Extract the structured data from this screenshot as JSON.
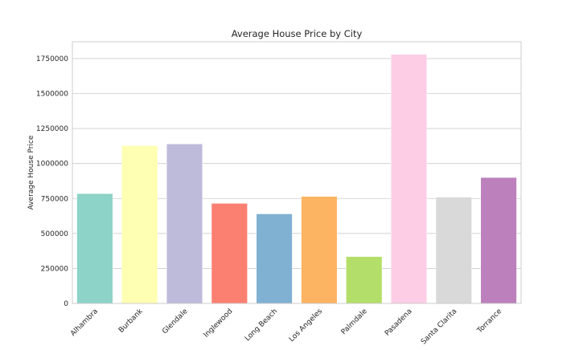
{
  "chart_data": {
    "type": "bar",
    "title": "Average House Price by City",
    "xlabel": "",
    "ylabel": "Average House Price",
    "categories": [
      "Alhambra",
      "Burbank",
      "Glendale",
      "Inglewood",
      "Long Beach",
      "Los Angeles",
      "Palmdale",
      "Pasadena",
      "Santa Clarita",
      "Torrance"
    ],
    "values": [
      785000,
      1128000,
      1140000,
      715000,
      640000,
      765000,
      335000,
      1780000,
      760000,
      900000
    ],
    "yticks": [
      0,
      250000,
      500000,
      750000,
      1000000,
      1250000,
      1500000,
      1750000
    ],
    "ytick_labels": [
      "0",
      "250000",
      "500000",
      "750000",
      "1000000",
      "1250000",
      "1500000",
      "1750000"
    ],
    "ylim": [
      0,
      1870000
    ],
    "grid": true,
    "colors": [
      "#8dd3c7",
      "#ffffb3",
      "#bebada",
      "#fb8072",
      "#80b1d3",
      "#fdb462",
      "#b3de69",
      "#fccde5",
      "#d9d9d9",
      "#bc80bd"
    ],
    "grid_color": "#cccccc",
    "frame_color": "#cccccc"
  }
}
